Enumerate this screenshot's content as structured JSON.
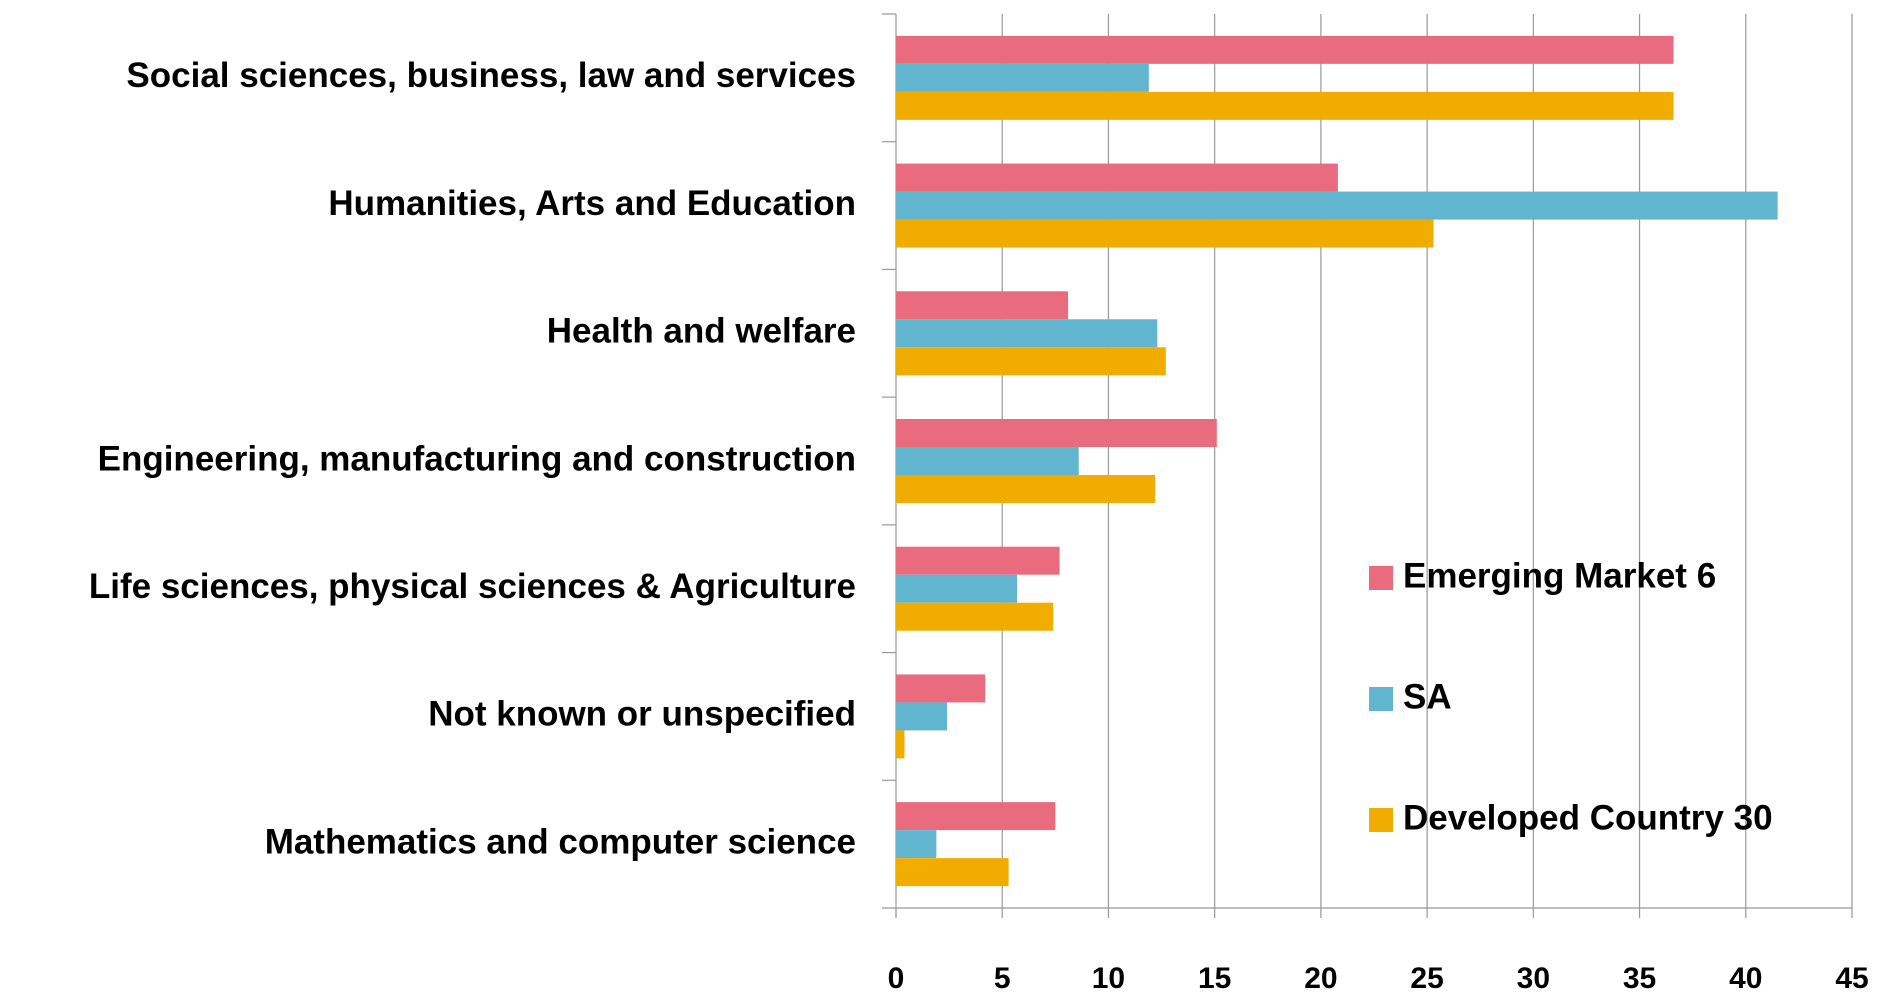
{
  "chart_data": {
    "type": "hbar",
    "categories": [
      "Social sciences, business, law and services",
      "Humanities, Arts and Education",
      "Health and welfare",
      "Engineering, manufacturing and construction",
      "Life sciences, physical sciences  & Agriculture",
      "Not known or unspecified",
      "Mathematics and computer science"
    ],
    "series": [
      {
        "name": "Emerging Market 6",
        "color": "#e96c7e",
        "values": [
          36.6,
          20.8,
          8.1,
          15.1,
          7.7,
          4.2,
          7.5
        ]
      },
      {
        "name": "SA",
        "color": "#62b5cf",
        "values": [
          11.9,
          41.5,
          12.3,
          8.6,
          5.7,
          2.4,
          1.9
        ]
      },
      {
        "name": "Developed Country 30",
        "color": "#f0ad00",
        "values": [
          36.6,
          25.3,
          12.7,
          12.2,
          7.4,
          0.4,
          5.3
        ]
      }
    ],
    "xlim": [
      0,
      45
    ],
    "xticks": [
      0,
      5,
      10,
      15,
      20,
      25,
      30,
      35,
      40,
      45
    ],
    "grid": true,
    "legend": "right"
  }
}
